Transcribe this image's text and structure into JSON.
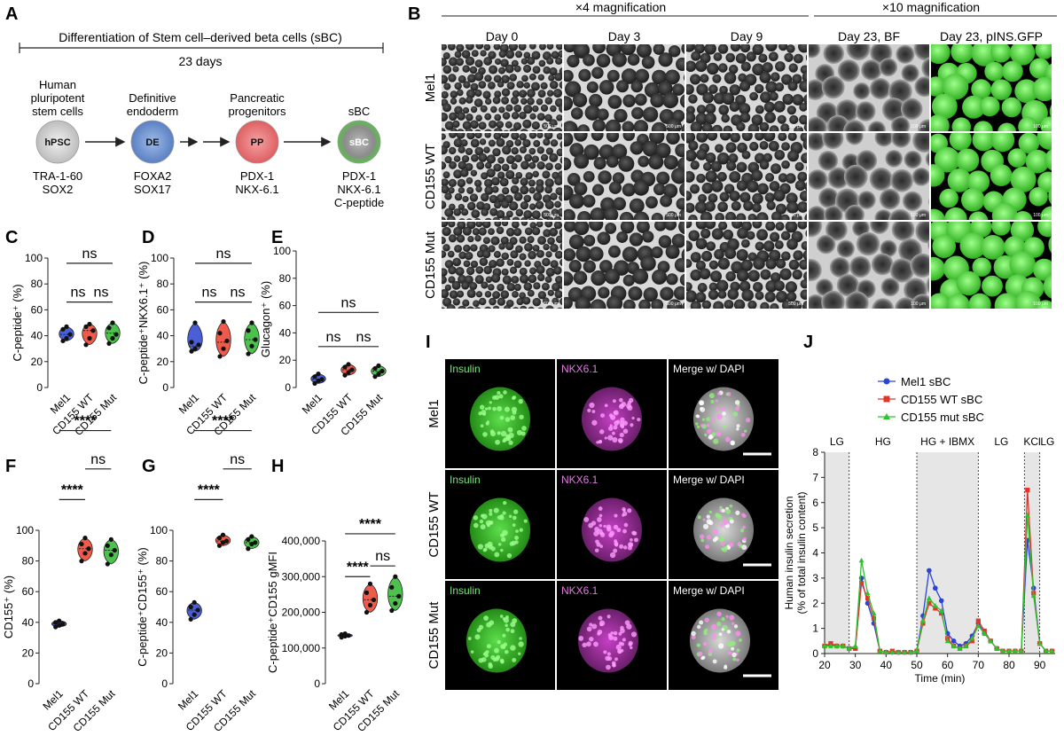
{
  "panel_letters": [
    "A",
    "B",
    "C",
    "D",
    "E",
    "F",
    "G",
    "H",
    "I",
    "J"
  ],
  "panel_a": {
    "title": "Differentiation of Stem cell–derived beta cells (sBC)",
    "duration": "23 days",
    "stages": [
      {
        "abbr": "hPSC",
        "name": [
          "Human",
          "pluripotent",
          "stem cells"
        ],
        "markers": [
          "TRA-1-60",
          "SOX2"
        ],
        "color": "#d9d9d9"
      },
      {
        "abbr": "DE",
        "name": [
          "Definitive",
          "endoderm"
        ],
        "markers": [
          "FOXA2",
          "SOX17"
        ],
        "color": "#6f95cf"
      },
      {
        "abbr": "PP",
        "name": [
          "Pancreatic",
          "progenitors"
        ],
        "markers": [
          "PDX-1",
          "NKX-6.1"
        ],
        "color": "#e8787a"
      },
      {
        "abbr": "sBC",
        "name": [
          "sBC"
        ],
        "markers": [
          "PDX-1",
          "NKX-6.1",
          "C-peptide"
        ],
        "color": "#6cbf5a"
      }
    ]
  },
  "panel_b": {
    "mag4": "×4 magnification",
    "mag10": "×10 magnification",
    "columns": [
      "Day 0",
      "Day 3",
      "Day 9",
      "Day 23, BF",
      "Day 23, pINS.GFP"
    ],
    "rows": [
      "Mel1",
      "CD155 WT",
      "CD155 Mut"
    ],
    "scale_labels": [
      "500 μm",
      "500 μm",
      "500 μm",
      "100 μm",
      "100 μm"
    ]
  },
  "violin_groups": [
    "Mel1",
    "CD155 WT",
    "CD155 Mut"
  ],
  "group_colors": [
    "#4a5fd6",
    "#ef5a4a",
    "#4cc24c"
  ],
  "chart_data": [
    {
      "panel": "C",
      "type": "violin",
      "ylabel": "C-peptide⁺ (%)",
      "ylim": [
        0,
        100
      ],
      "yticks": [
        "0",
        "20",
        "40",
        "60",
        "80",
        "100"
      ],
      "categories": [
        "Mel1",
        "CD155 WT",
        "CD155 Mut"
      ],
      "medians": [
        41,
        44,
        42
      ],
      "points": [
        [
          36,
          38,
          41,
          45,
          47
        ],
        [
          33,
          38,
          44,
          47,
          49
        ],
        [
          34,
          38,
          41,
          46,
          50
        ]
      ],
      "sig": [
        {
          "a": 0,
          "b": 1,
          "label": "ns",
          "level": 1
        },
        {
          "a": 1,
          "b": 2,
          "label": "ns",
          "level": 1
        },
        {
          "a": 0,
          "b": 2,
          "label": "ns",
          "level": 2
        }
      ]
    },
    {
      "panel": "D",
      "type": "violin",
      "ylabel": "C-peptide⁺NKX6.1⁺ (%)",
      "ylim": [
        0,
        100
      ],
      "yticks": [
        "0",
        "20",
        "40",
        "60",
        "80",
        "100"
      ],
      "categories": [
        "Mel1",
        "CD155 WT",
        "CD155 Mut"
      ],
      "medians": [
        32,
        35,
        37
      ],
      "points": [
        [
          28,
          30,
          33,
          35,
          50
        ],
        [
          24,
          30,
          36,
          42,
          51
        ],
        [
          26,
          32,
          37,
          44,
          50
        ]
      ],
      "sig": [
        {
          "a": 0,
          "b": 1,
          "label": "ns",
          "level": 1
        },
        {
          "a": 1,
          "b": 2,
          "label": "ns",
          "level": 1
        },
        {
          "a": 0,
          "b": 2,
          "label": "ns",
          "level": 2
        }
      ]
    },
    {
      "panel": "E",
      "type": "violin",
      "ylabel": "Glucagon⁺ (%)",
      "ylim": [
        0,
        100
      ],
      "yticks": [
        "0",
        "20",
        "40",
        "60",
        "80",
        "100"
      ],
      "categories": [
        "Mel1",
        "CD155 WT",
        "CD155 Mut"
      ],
      "medians": [
        6,
        13,
        12
      ],
      "points": [
        [
          3,
          5,
          6,
          8,
          10
        ],
        [
          9,
          11,
          13,
          15,
          17
        ],
        [
          8,
          10,
          12,
          14,
          16
        ]
      ],
      "sig": [
        {
          "a": 0,
          "b": 1,
          "label": "ns",
          "level": 1
        },
        {
          "a": 1,
          "b": 2,
          "label": "ns",
          "level": 1
        },
        {
          "a": 0,
          "b": 2,
          "label": "ns",
          "level": 2
        }
      ]
    },
    {
      "panel": "F",
      "type": "violin",
      "ylabel": "CD155⁺ (%)",
      "ylim": [
        0,
        100
      ],
      "yticks": [
        "0",
        "20",
        "40",
        "60",
        "80",
        "100"
      ],
      "categories": [
        "Mel1",
        "CD155 WT",
        "CD155 Mut"
      ],
      "medians": [
        39,
        88,
        87
      ],
      "points": [
        [
          37,
          38,
          39,
          40,
          41
        ],
        [
          80,
          85,
          88,
          91,
          95
        ],
        [
          78,
          84,
          87,
          90,
          94
        ]
      ],
      "sig": [
        {
          "a": 0,
          "b": 1,
          "label": "****",
          "level": 1
        },
        {
          "a": 1,
          "b": 2,
          "label": "ns",
          "level": 2
        },
        {
          "a": 0,
          "b": 2,
          "label": "****",
          "level": 3
        }
      ]
    },
    {
      "panel": "G",
      "type": "violin",
      "ylabel": "C-peptide⁺CD155⁺ (%)",
      "ylim": [
        0,
        100
      ],
      "yticks": [
        "0",
        "20",
        "40",
        "60",
        "80",
        "100"
      ],
      "categories": [
        "Mel1",
        "CD155 WT",
        "CD155 Mut"
      ],
      "medians": [
        48,
        93,
        92
      ],
      "points": [
        [
          42,
          45,
          48,
          50,
          53
        ],
        [
          90,
          92,
          93,
          95,
          97
        ],
        [
          88,
          91,
          92,
          94,
          96
        ]
      ],
      "sig": [
        {
          "a": 0,
          "b": 1,
          "label": "****",
          "level": 1
        },
        {
          "a": 1,
          "b": 2,
          "label": "ns",
          "level": 2
        },
        {
          "a": 0,
          "b": 2,
          "label": "****",
          "level": 3
        }
      ]
    },
    {
      "panel": "H",
      "type": "violin",
      "ylabel": "C-peptide⁺CD155 gMFI",
      "ylim": [
        0,
        400000
      ],
      "yticks": [
        "0",
        "100,000",
        "200,000",
        "300,000",
        "400,000"
      ],
      "categories": [
        "Mel1",
        "CD155 WT",
        "CD155 Mut"
      ],
      "medians": [
        135000,
        235000,
        245000
      ],
      "points": [
        [
          130000,
          133000,
          135000,
          138000,
          140000
        ],
        [
          200000,
          220000,
          235000,
          255000,
          280000
        ],
        [
          205000,
          225000,
          245000,
          270000,
          300000
        ]
      ],
      "sig": [
        {
          "a": 0,
          "b": 1,
          "label": "****",
          "level": 1
        },
        {
          "a": 1,
          "b": 2,
          "label": "ns",
          "level": 2
        },
        {
          "a": 0,
          "b": 2,
          "label": "****",
          "level": 3
        }
      ]
    },
    {
      "panel": "J",
      "type": "line",
      "xlabel": "Time (min)",
      "ylabel": [
        "Human insulin secretion",
        "(% of total insulin content)"
      ],
      "xlim": [
        20,
        95
      ],
      "ylim": [
        0,
        8
      ],
      "xticks": [
        20,
        30,
        40,
        50,
        60,
        70,
        80,
        90
      ],
      "yticks": [
        0,
        1,
        2,
        3,
        4,
        5,
        6,
        7,
        8
      ],
      "phases": [
        {
          "label": "LG",
          "from": 20,
          "to": 28,
          "shaded": true
        },
        {
          "label": "HG",
          "from": 28,
          "to": 50,
          "shaded": false
        },
        {
          "label": "HG + IBMX",
          "from": 50,
          "to": 70,
          "shaded": true
        },
        {
          "label": "LG",
          "from": 70,
          "to": 85,
          "shaded": false
        },
        {
          "label": "KCl",
          "from": 85,
          "to": 90,
          "shaded": true
        },
        {
          "label": "LG",
          "from": 90,
          "to": 95,
          "shaded": false
        }
      ],
      "x": [
        20,
        22,
        24,
        26,
        28,
        30,
        32,
        34,
        36,
        38,
        40,
        42,
        44,
        46,
        48,
        50,
        52,
        54,
        56,
        58,
        60,
        62,
        64,
        66,
        68,
        70,
        72,
        74,
        76,
        78,
        80,
        82,
        84,
        86,
        88,
        90,
        92,
        94
      ],
      "series": [
        {
          "name": "Mel1 sBC",
          "color": "#2b44d8",
          "marker": "circle",
          "values": [
            0.3,
            0.35,
            0.3,
            0.3,
            0.2,
            0.2,
            3.0,
            2.0,
            1.2,
            0.1,
            0.05,
            0.05,
            0.05,
            0.05,
            0.05,
            0.1,
            1.5,
            3.3,
            2.6,
            2.1,
            0.8,
            0.5,
            0.3,
            0.4,
            0.7,
            1.2,
            0.8,
            0.5,
            0.2,
            0.1,
            0.1,
            0.1,
            0.1,
            4.5,
            2.6,
            0.4,
            0.1,
            0.1
          ]
        },
        {
          "name": "CD155 WT sBC",
          "color": "#e0352b",
          "marker": "square",
          "values": [
            0.3,
            0.4,
            0.3,
            0.3,
            0.2,
            0.2,
            2.8,
            2.2,
            1.4,
            0.1,
            0.05,
            0.1,
            0.05,
            0.05,
            0.05,
            0.1,
            1.2,
            2.0,
            1.8,
            1.6,
            0.6,
            0.3,
            0.2,
            0.3,
            0.5,
            1.3,
            0.9,
            0.5,
            0.2,
            0.1,
            0.1,
            0.1,
            0.1,
            6.5,
            2.4,
            0.4,
            0.1,
            0.1
          ]
        },
        {
          "name": "CD155 mut sBC",
          "color": "#2fc22f",
          "marker": "triangle",
          "values": [
            0.3,
            0.3,
            0.3,
            0.3,
            0.2,
            0.3,
            3.7,
            2.4,
            1.6,
            0.1,
            0.05,
            0.05,
            0.05,
            0.05,
            0.05,
            0.1,
            1.3,
            2.2,
            1.9,
            1.7,
            0.5,
            0.3,
            0.2,
            0.3,
            0.6,
            1.1,
            0.8,
            0.5,
            0.2,
            0.1,
            0.1,
            0.1,
            0.1,
            5.5,
            2.3,
            0.4,
            0.1,
            0.1
          ]
        }
      ]
    }
  ],
  "panel_i": {
    "channels": [
      "Insulin",
      "NKX6.1",
      "Merge w/ DAPI"
    ],
    "rows": [
      "Mel1",
      "CD155 WT",
      "CD155 Mut"
    ],
    "channel_colors": [
      "#7be37b",
      "#e07be0",
      "#ffffff"
    ]
  }
}
